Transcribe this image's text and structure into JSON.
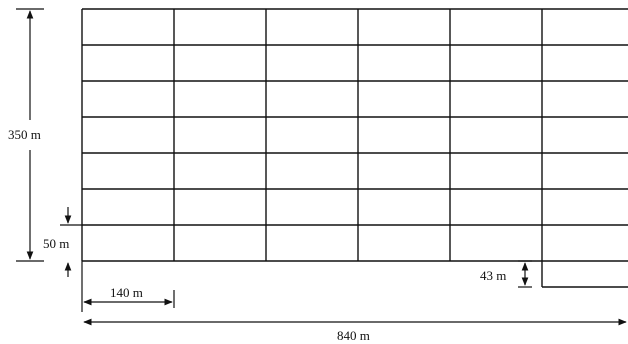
{
  "dimensions": {
    "total_height": "350 m",
    "row_height": "50 m",
    "column_width": "140 m",
    "total_width": "840 m",
    "offset": "43 m"
  },
  "grid": {
    "columns": 6,
    "rows": 7
  },
  "colors": {
    "ink": "#111111",
    "background": "#ffffff"
  }
}
